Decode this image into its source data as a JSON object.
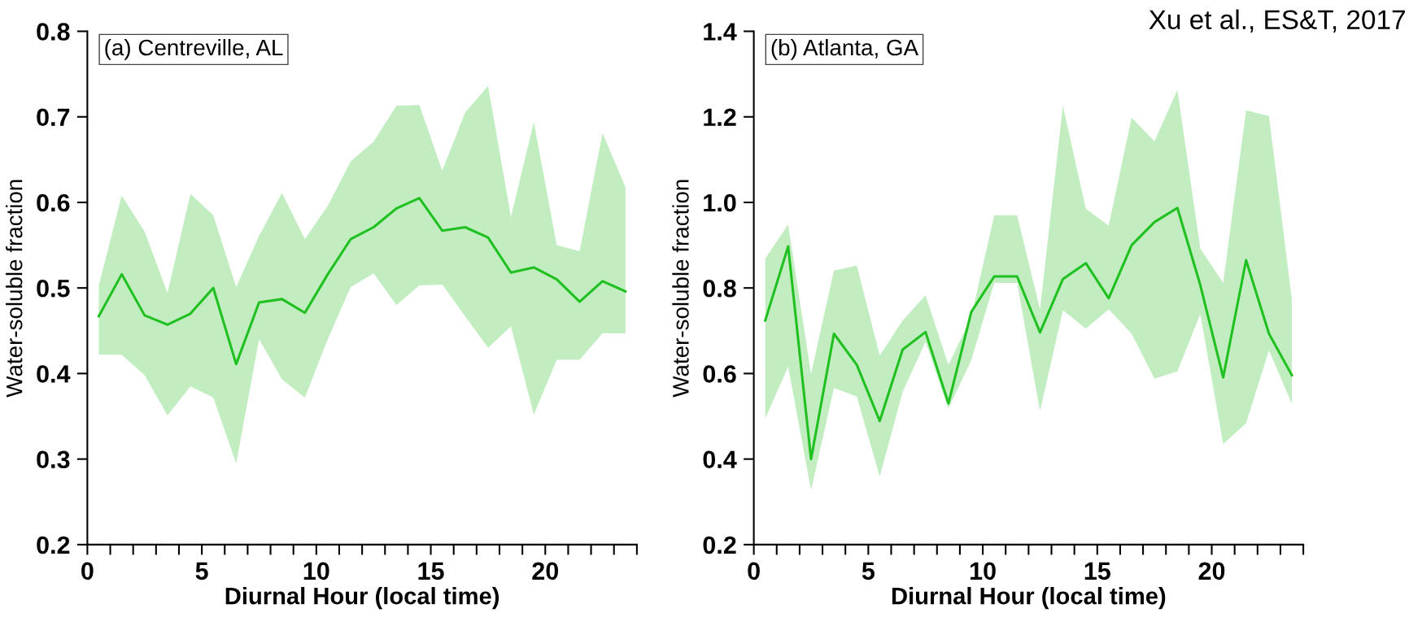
{
  "chart_data": [
    {
      "type": "line",
      "title": "(a) Centreville, AL",
      "xlabel": "Diurnal Hour (local time)",
      "ylabel": "Water-soluble fraction",
      "x": [
        0.5,
        1.5,
        2.5,
        3.5,
        4.5,
        5.5,
        6.5,
        7.5,
        8.5,
        9.5,
        10.5,
        11.5,
        12.5,
        13.5,
        14.5,
        15.5,
        16.5,
        17.5,
        18.5,
        19.5,
        20.5,
        21.5,
        22.5,
        23.5
      ],
      "series": [
        {
          "color": "#1fc01f",
          "values": [
            0.467,
            0.516,
            0.468,
            0.457,
            0.47,
            0.5,
            0.411,
            0.483,
            0.487,
            0.471,
            0.516,
            0.557,
            0.571,
            0.593,
            0.605,
            0.567,
            0.571,
            0.559,
            0.518,
            0.524,
            0.51,
            0.484,
            0.508,
            0.496
          ],
          "lower": [
            0.422,
            0.422,
            0.398,
            0.351,
            0.385,
            0.372,
            0.295,
            0.44,
            0.393,
            0.372,
            0.44,
            0.501,
            0.517,
            0.48,
            0.503,
            0.504,
            0.467,
            0.43,
            0.455,
            0.352,
            0.416,
            0.416,
            0.447,
            0.447
          ],
          "upper": [
            0.503,
            0.608,
            0.566,
            0.494,
            0.61,
            0.585,
            0.501,
            0.561,
            0.611,
            0.557,
            0.596,
            0.648,
            0.671,
            0.713,
            0.714,
            0.637,
            0.705,
            0.736,
            0.583,
            0.694,
            0.55,
            0.543,
            0.681,
            0.618
          ]
        }
      ],
      "xlim": [
        0,
        24
      ],
      "ylim": [
        0.2,
        0.8
      ],
      "xticks": [
        0,
        {
          "value": 1,
          "label": null
        },
        {
          "value": 2,
          "label": null
        },
        {
          "value": 3,
          "label": null
        },
        {
          "value": 4,
          "label": null
        },
        5,
        {
          "value": 6,
          "label": null
        },
        {
          "value": 7,
          "label": null
        },
        {
          "value": 8,
          "label": null
        },
        {
          "value": 9,
          "label": null
        },
        10,
        {
          "value": 11,
          "label": null
        },
        {
          "value": 12,
          "label": null
        },
        {
          "value": 13,
          "label": null
        },
        {
          "value": 14,
          "label": null
        },
        15,
        {
          "value": 16,
          "label": null
        },
        {
          "value": 17,
          "label": null
        },
        {
          "value": 18,
          "label": null
        },
        {
          "value": 19,
          "label": null
        },
        20,
        {
          "value": 21,
          "label": null
        },
        {
          "value": 22,
          "label": null
        },
        {
          "value": 23,
          "label": null
        },
        {
          "value": 24,
          "label": null
        }
      ],
      "yticks": [
        0.2,
        0.3,
        0.4,
        0.5,
        0.6,
        0.7,
        0.8
      ],
      "grid": false,
      "legend": false,
      "marker": "none",
      "line_style": "solid"
    },
    {
      "type": "line",
      "title": "(b) Atlanta, GA",
      "xlabel": "Diurnal Hour (local time)",
      "ylabel": "Water-soluble fraction",
      "annotations": [
        "Xu et al., ES&T, 2017"
      ],
      "x": [
        0.5,
        1.5,
        2.5,
        3.5,
        4.5,
        5.5,
        6.5,
        7.5,
        8.5,
        9.5,
        10.5,
        11.5,
        12.5,
        13.5,
        14.5,
        15.5,
        16.5,
        17.5,
        18.5,
        19.5,
        20.5,
        21.5,
        22.5,
        23.5
      ],
      "series": [
        {
          "color": "#1fc01f",
          "values": [
            0.724,
            0.897,
            0.4,
            0.693,
            0.62,
            0.489,
            0.656,
            0.697,
            0.53,
            0.744,
            0.827,
            0.827,
            0.696,
            0.821,
            0.858,
            0.776,
            0.9,
            0.954,
            0.987,
            0.807,
            0.591,
            0.865,
            0.693,
            0.596
          ],
          "lower": [
            0.495,
            0.616,
            0.327,
            0.566,
            0.546,
            0.359,
            0.557,
            0.674,
            0.518,
            0.631,
            0.812,
            0.812,
            0.512,
            0.748,
            0.705,
            0.75,
            0.693,
            0.588,
            0.605,
            0.739,
            0.435,
            0.484,
            0.654,
            0.529
          ],
          "upper": [
            0.869,
            0.948,
            0.599,
            0.841,
            0.852,
            0.642,
            0.724,
            0.783,
            0.62,
            0.733,
            0.97,
            0.97,
            0.75,
            1.226,
            0.985,
            0.946,
            1.198,
            1.143,
            1.263,
            0.892,
            0.812,
            1.215,
            1.202,
            0.773
          ]
        }
      ],
      "xlim": [
        0,
        24
      ],
      "ylim": [
        0.2,
        1.4
      ],
      "xticks": [
        0,
        {
          "value": 1,
          "label": null
        },
        {
          "value": 2,
          "label": null
        },
        {
          "value": 3,
          "label": null
        },
        {
          "value": 4,
          "label": null
        },
        5,
        {
          "value": 6,
          "label": null
        },
        {
          "value": 7,
          "label": null
        },
        {
          "value": 8,
          "label": null
        },
        {
          "value": 9,
          "label": null
        },
        10,
        {
          "value": 11,
          "label": null
        },
        {
          "value": 12,
          "label": null
        },
        {
          "value": 13,
          "label": null
        },
        {
          "value": 14,
          "label": null
        },
        15,
        {
          "value": 16,
          "label": null
        },
        {
          "value": 17,
          "label": null
        },
        {
          "value": 18,
          "label": null
        },
        {
          "value": 19,
          "label": null
        },
        20,
        {
          "value": 21,
          "label": null
        },
        {
          "value": 22,
          "label": null
        },
        {
          "value": 23,
          "label": null
        },
        {
          "value": 24,
          "label": null
        }
      ],
      "yticks": [
        0.2,
        0.4,
        0.6,
        0.8,
        {
          "value": 1.0,
          "label": "1.0"
        },
        1.2,
        1.4
      ],
      "grid": false,
      "legend": false,
      "marker": "none",
      "line_style": "solid"
    }
  ]
}
